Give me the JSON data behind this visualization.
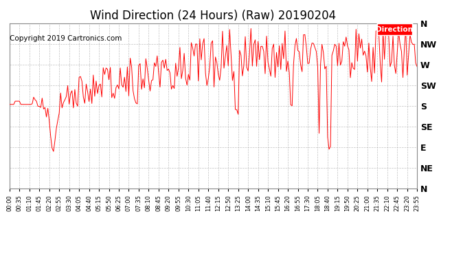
{
  "title": "Wind Direction (24 Hours) (Raw) 20190204",
  "copyright": "Copyright 2019 Cartronics.com",
  "legend_label": "Direction",
  "legend_color": "#ff0000",
  "line_color": "#ff0000",
  "bg_color": "#ffffff",
  "plot_bg": "#ffffff",
  "grid_color": "#b0b0b0",
  "ytick_labels": [
    "N",
    "NW",
    "W",
    "SW",
    "S",
    "SE",
    "E",
    "NE",
    "N"
  ],
  "ytick_values": [
    360,
    315,
    270,
    225,
    180,
    135,
    90,
    45,
    0
  ],
  "ylim": [
    0,
    360
  ],
  "title_fontsize": 12,
  "copyright_fontsize": 7.5,
  "tick_label_fontsize": 6,
  "seed": 42
}
